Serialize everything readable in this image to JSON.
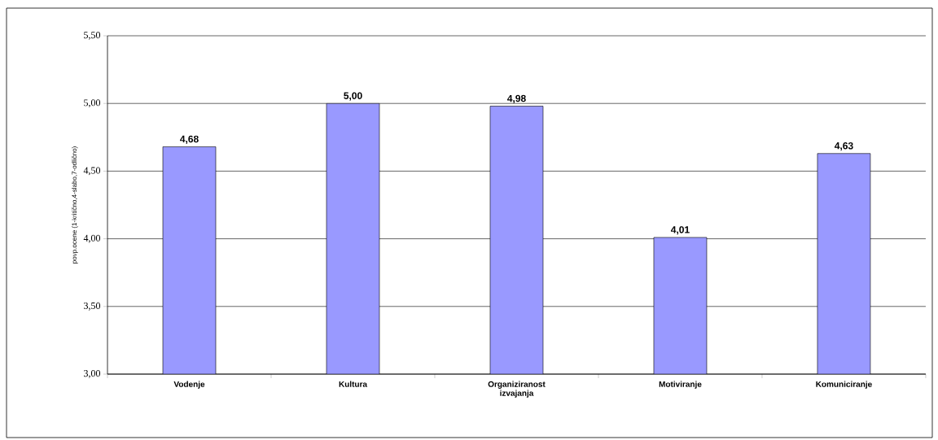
{
  "chart_data": {
    "type": "bar",
    "ylabel": "povp.ocene (1-kritično,4-slabo,7-odlično)",
    "categories": [
      "Vodenje",
      "Kultura",
      "Organiziranost izvajanja",
      "Motiviranje",
      "Komuniciranje"
    ],
    "values": [
      4.68,
      5.0,
      4.98,
      4.01,
      4.63
    ],
    "value_labels": [
      "4,68",
      "5,00",
      "4,98",
      "4,01",
      "4,63"
    ],
    "color": "#9999ff",
    "ylim": [
      3.0,
      5.5
    ],
    "yticks": [
      {
        "value": 3.0,
        "label": "3,00"
      },
      {
        "value": 3.5,
        "label": "3,50"
      },
      {
        "value": 4.0,
        "label": "4,00"
      },
      {
        "value": 4.5,
        "label": "4,50"
      },
      {
        "value": 5.0,
        "label": "5,00"
      },
      {
        "value": 5.5,
        "label": "5,50"
      }
    ],
    "grid": "y"
  }
}
